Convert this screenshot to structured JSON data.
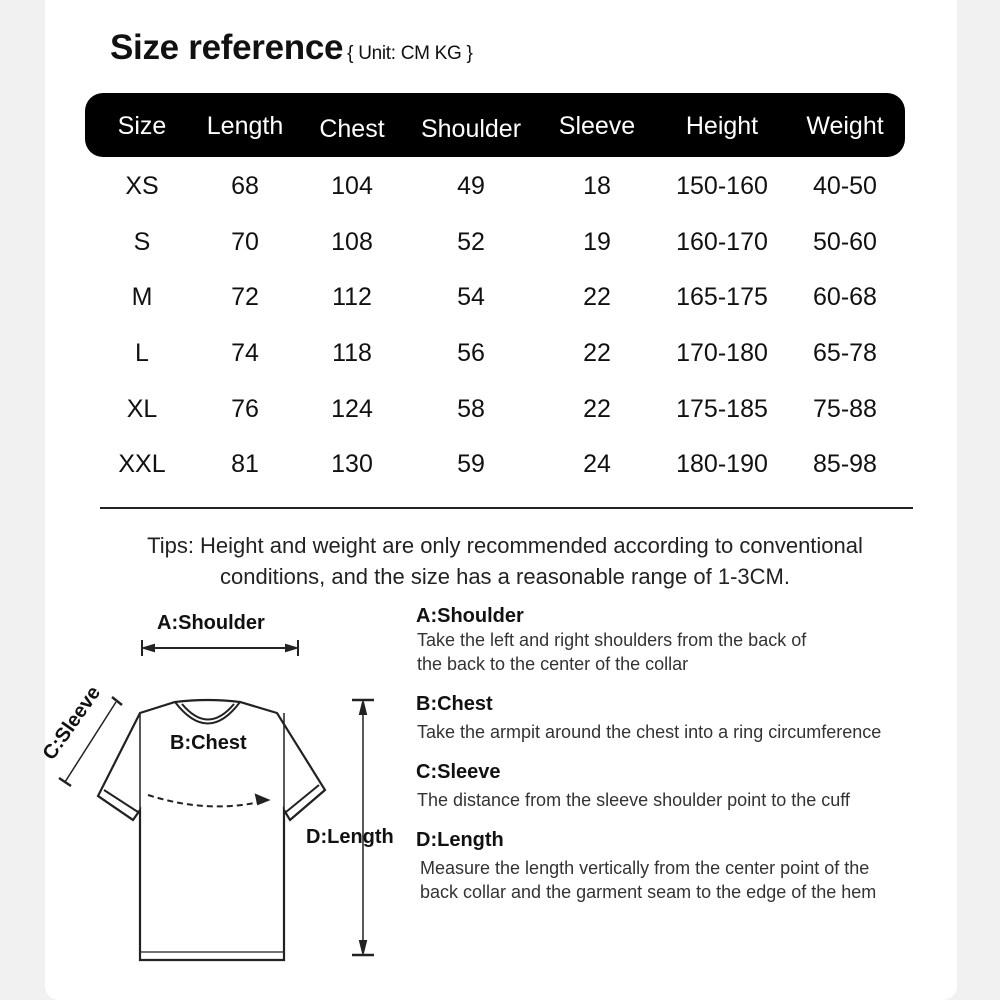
{
  "title": "Size reference",
  "unit": "{ Unit: CM KG }",
  "columns": [
    "Size",
    "Length",
    "Chest",
    "Shoulder",
    "Sleeve",
    "Height",
    "Weight"
  ],
  "rows": [
    [
      "XS",
      "68",
      "104",
      "49",
      "18",
      "150-160",
      "40-50"
    ],
    [
      "S",
      "70",
      "108",
      "52",
      "19",
      "160-170",
      "50-60"
    ],
    [
      "M",
      "72",
      "112",
      "54",
      "22",
      "165-175",
      "60-68"
    ],
    [
      "L",
      "74",
      "118",
      "56",
      "22",
      "170-180",
      "65-78"
    ],
    [
      "XL",
      "76",
      "124",
      "58",
      "22",
      "175-185",
      "75-88"
    ],
    [
      "XXL",
      "81",
      "130",
      "59",
      "24",
      "180-190",
      "85-98"
    ]
  ],
  "tips": [
    "Tips: Height and weight are only recommended according to conventional",
    "conditions, and the size has a reasonable range of 1-3CM."
  ],
  "diagram": {
    "shoulder": "A:Shoulder",
    "chest": "B:Chest",
    "sleeve": "C:Sleeve",
    "length": "D:Length"
  },
  "legend": [
    {
      "title": "A:Shoulder",
      "lines": [
        "Take the left and right shoulders from the back of",
        "the back to the center of the collar"
      ]
    },
    {
      "title": "B:Chest",
      "lines": [
        "Take the armpit around the chest into a ring circumference"
      ]
    },
    {
      "title": "C:Sleeve",
      "lines": [
        "The distance from the sleeve shoulder point to the cuff"
      ]
    },
    {
      "title": "D:Length",
      "lines": [
        "Measure the length vertically from the center point of the",
        "back collar and the garment seam to the edge of the hem"
      ]
    }
  ]
}
